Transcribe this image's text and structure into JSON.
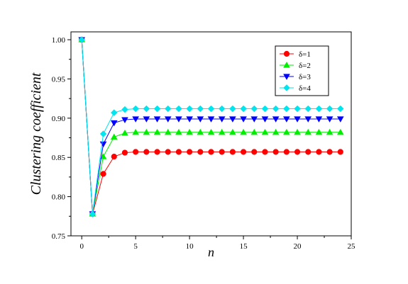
{
  "chart_data": {
    "type": "line",
    "title": "",
    "xlabel": "n",
    "ylabel": "Clustering coefficient",
    "xlim": [
      -1,
      25
    ],
    "ylim": [
      0.75,
      1.01
    ],
    "xticks": [
      0,
      5,
      10,
      15,
      20,
      25
    ],
    "xtick_labels": [
      "0",
      "5",
      "10",
      "15",
      "20",
      "25"
    ],
    "yticks": [
      0.75,
      0.8,
      0.85,
      0.9,
      0.95,
      1.0
    ],
    "ytick_labels": [
      "0.75",
      "0.80",
      "0.85",
      "0.90",
      "0.95",
      "1.00"
    ],
    "grid": false,
    "legend_position": "top-right",
    "x": [
      0,
      1,
      2,
      3,
      4,
      5,
      6,
      7,
      8,
      9,
      10,
      11,
      12,
      13,
      14,
      15,
      16,
      17,
      18,
      19,
      20,
      21,
      22,
      23,
      24
    ],
    "series": [
      {
        "name": "δ=1",
        "color": "#ff0000",
        "marker": "circle",
        "values": [
          1.0,
          0.778,
          0.829,
          0.851,
          0.856,
          0.857,
          0.857,
          0.857,
          0.857,
          0.857,
          0.857,
          0.857,
          0.857,
          0.857,
          0.857,
          0.857,
          0.857,
          0.857,
          0.857,
          0.857,
          0.857,
          0.857,
          0.857,
          0.857,
          0.857
        ]
      },
      {
        "name": "δ=2",
        "color": "#00ee00",
        "marker": "triangle-up",
        "values": [
          1.0,
          0.778,
          0.851,
          0.876,
          0.881,
          0.882,
          0.882,
          0.882,
          0.882,
          0.882,
          0.882,
          0.882,
          0.882,
          0.882,
          0.882,
          0.882,
          0.882,
          0.882,
          0.882,
          0.882,
          0.882,
          0.882,
          0.882,
          0.882,
          0.882
        ]
      },
      {
        "name": "δ=3",
        "color": "#0000ff",
        "marker": "triangle-down",
        "values": [
          1.0,
          0.778,
          0.867,
          0.894,
          0.898,
          0.899,
          0.899,
          0.899,
          0.899,
          0.899,
          0.899,
          0.899,
          0.899,
          0.899,
          0.899,
          0.899,
          0.899,
          0.899,
          0.899,
          0.899,
          0.899,
          0.899,
          0.899,
          0.899,
          0.899
        ]
      },
      {
        "name": "δ=4",
        "color": "#00e5ee",
        "marker": "diamond",
        "values": [
          1.0,
          0.778,
          0.88,
          0.907,
          0.911,
          0.912,
          0.912,
          0.912,
          0.912,
          0.912,
          0.912,
          0.912,
          0.912,
          0.912,
          0.912,
          0.912,
          0.912,
          0.912,
          0.912,
          0.912,
          0.912,
          0.912,
          0.912,
          0.912,
          0.912
        ]
      }
    ]
  }
}
